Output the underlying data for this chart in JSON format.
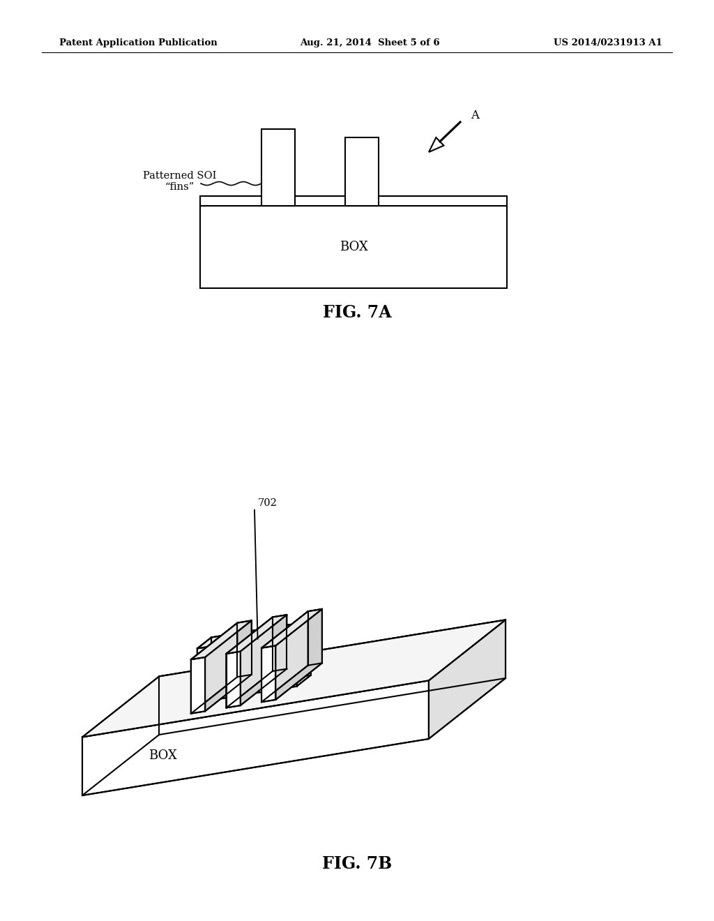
{
  "background_color": "#ffffff",
  "header_left": "Patent Application Publication",
  "header_mid": "Aug. 21, 2014  Sheet 5 of 6",
  "header_right": "US 2014/0231913 A1",
  "fig7a_label": "FIG. 7A",
  "fig7b_label": "FIG. 7B",
  "box_label_7a": "BOX",
  "box_label_7b": "BOX",
  "label_fins": "Patterned SOI\n“fins”",
  "label_702": "702",
  "label_A": "A",
  "lw": 1.5
}
